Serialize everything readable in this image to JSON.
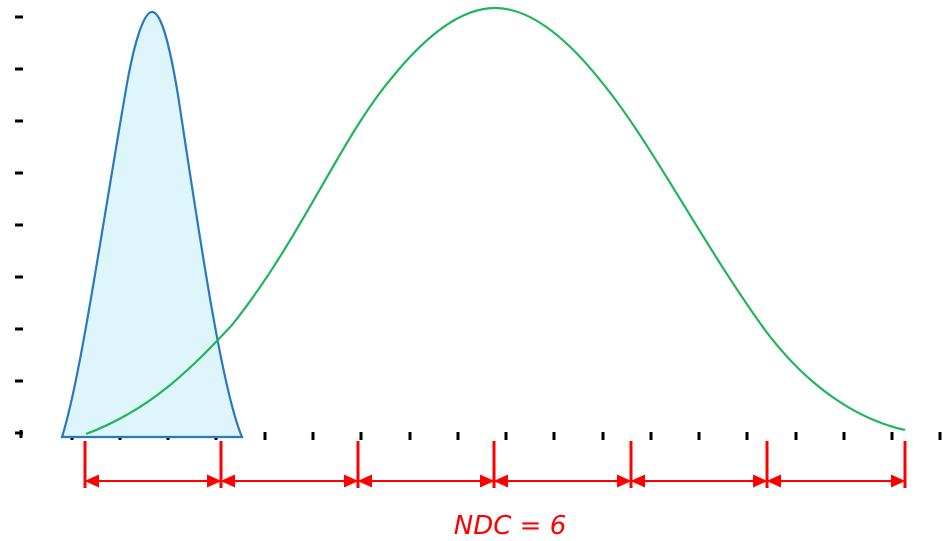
{
  "diagram": {
    "label": "NDC = 6",
    "colors": {
      "narrow_curve_stroke": "#2b78c2",
      "narrow_curve_fill": "#dff5fc",
      "wide_curve_stroke": "#21b55b",
      "measurement": "#ff0000",
      "ticks": "#000000"
    },
    "distinct_categories": 6
  }
}
